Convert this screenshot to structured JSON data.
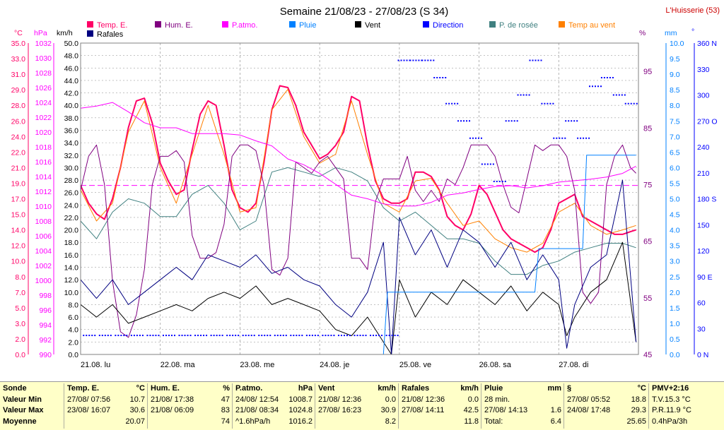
{
  "title": "Semaine 21/08/23 - 27/08/23 (S 34)",
  "station": "L'Huisserie (53)",
  "colors": {
    "temp": "#ff0066",
    "hum": "#800080",
    "patm": "#ff00ff",
    "pluie": "#0080ff",
    "vent": "#000000",
    "direction": "#0000ff",
    "rosee": "#408080",
    "tempvent": "#ff8000",
    "rafales": "#000080",
    "grid": "#a0a0a0"
  },
  "axes": {
    "c_unit": "°C",
    "hpa_unit": "hPa",
    "kmh_unit": "km/h",
    "pct_unit": "%",
    "mm_unit": "mm",
    "deg_unit": "°",
    "c_ticks": [
      "35.0",
      "33.0",
      "31.0",
      "29.0",
      "28.0",
      "26.0",
      "24.0",
      "22.0",
      "21.0",
      "19.0",
      "17.0",
      "15.0",
      "14.0",
      "12.0",
      "10.0",
      "8.0",
      "7.0",
      "5.0",
      "3.0",
      "2.0",
      "0.0"
    ],
    "hpa_ticks": [
      "1032",
      "1030",
      "1028",
      "1026",
      "1024",
      "1022",
      "1020",
      "1018",
      "1016",
      "1014",
      "1012",
      "1010",
      "1008",
      "1006",
      "1004",
      "1002",
      "1000",
      "998",
      "996",
      "994",
      "992",
      "990"
    ],
    "kmh_ticks": [
      "50.0",
      "48.0",
      "46.0",
      "44.0",
      "42.0",
      "40.0",
      "38.0",
      "36.0",
      "34.0",
      "32.0",
      "30.0",
      "28.0",
      "26.0",
      "24.0",
      "22.0",
      "20.0",
      "18.0",
      "16.0",
      "14.0",
      "12.0",
      "10.0",
      "8.0",
      "6.0",
      "4.0",
      "2.0",
      "0.0"
    ],
    "pct_ticks": [
      "95",
      "85",
      "75",
      "65",
      "55",
      "45"
    ],
    "mm_ticks": [
      "10.0",
      "9.5",
      "9.0",
      "8.5",
      "8.0",
      "7.5",
      "7.0",
      "6.5",
      "6.0",
      "5.5",
      "5.0",
      "4.5",
      "4.0",
      "3.5",
      "3.0",
      "2.5",
      "2.0",
      "1.5",
      "1.0",
      "0.5",
      "0.0"
    ],
    "deg_ticks": [
      "360 N",
      "330",
      "300",
      "270 O",
      "240",
      "210",
      "180 S",
      "150",
      "120",
      "90 E",
      "60",
      "30",
      "0 N"
    ],
    "day_labels": [
      "21.08. lu",
      "22.08. ma",
      "23.08. me",
      "24.08. je",
      "25.08. ve",
      "26.08. sa",
      "27.08. di"
    ]
  },
  "legend": [
    "Temp. E.",
    "Hum. E.",
    "P.atmo.",
    "Pluie",
    "Vent",
    "Direction",
    "P. de rosée",
    "Temp au vent",
    "Rafales"
  ],
  "chart_data": {
    "type": "line",
    "x_label": "days",
    "x_ticks": [
      "21.08. lu",
      "22.08. ma",
      "23.08. me",
      "24.08. je",
      "25.08. ve",
      "26.08. sa",
      "27.08. di"
    ],
    "x_range": [
      0,
      7
    ],
    "ylim_temp": [
      0,
      35
    ],
    "ylim_hum": [
      45,
      100
    ],
    "ylim_patm": [
      990,
      1033
    ],
    "ylim_wind": [
      0,
      50
    ],
    "ylim_rain": [
      0,
      10
    ],
    "ylim_dir": [
      0,
      360
    ],
    "series": [
      {
        "name": "Temp. E.",
        "axis": "temp",
        "color": "#ff0066",
        "width": 2,
        "x": [
          0,
          0.1,
          0.2,
          0.3,
          0.4,
          0.5,
          0.6,
          0.7,
          0.8,
          0.9,
          1,
          1.1,
          1.2,
          1.3,
          1.4,
          1.5,
          1.6,
          1.7,
          1.8,
          1.9,
          2,
          2.1,
          2.2,
          2.3,
          2.4,
          2.5,
          2.6,
          2.7,
          2.8,
          2.9,
          3,
          3.1,
          3.2,
          3.3,
          3.4,
          3.5,
          3.6,
          3.7,
          3.8,
          3.9,
          4,
          4.1,
          4.2,
          4.3,
          4.4,
          4.5,
          4.6,
          4.7,
          4.8,
          4.9,
          5,
          5.1,
          5.2,
          5.3,
          5.4,
          5.5,
          5.6,
          5.7,
          5.8,
          5.9,
          6,
          6.1,
          6.2,
          6.3,
          6.4,
          6.5,
          6.6,
          6.7,
          6.8,
          6.9,
          6.97
        ],
        "y": [
          19.0,
          17.0,
          15.8,
          15.2,
          17.5,
          21.0,
          25.5,
          28.5,
          28.8,
          26.0,
          21.5,
          19.5,
          18.0,
          18.5,
          23.0,
          27.0,
          28.5,
          28.0,
          23.5,
          18.5,
          16.5,
          16.0,
          17.0,
          21.5,
          27.5,
          30.2,
          30.0,
          28.0,
          25.0,
          23.5,
          22.0,
          22.5,
          23.5,
          25.0,
          29.0,
          28.5,
          23.5,
          19.5,
          17.5,
          17.0,
          17.0,
          17.5,
          20.5,
          20.5,
          20.0,
          18.5,
          15.5,
          14.5,
          14.0,
          15.8,
          19.0,
          18.0,
          16.0,
          14.0,
          13.0,
          12.5,
          12.0,
          11.5,
          12.0,
          14.0,
          17.0,
          17.5,
          18.0,
          15.5,
          15.0,
          14.5,
          14.0,
          13.5,
          13.5,
          13.8,
          14.0
        ]
      },
      {
        "name": "Temp au vent",
        "axis": "temp",
        "color": "#ff8000",
        "width": 1,
        "x": [
          0,
          0.2,
          0.4,
          0.6,
          0.8,
          1,
          1.2,
          1.4,
          1.6,
          1.8,
          2,
          2.2,
          2.4,
          2.6,
          2.8,
          3,
          3.2,
          3.4,
          3.6,
          3.8,
          4,
          4.2,
          4.4,
          4.6,
          4.8,
          5,
          5.2,
          5.4,
          5.6,
          5.8,
          6,
          6.2,
          6.4,
          6.6,
          6.8,
          6.97
        ],
        "y": [
          18.5,
          15.0,
          17.0,
          25.0,
          28.5,
          21.0,
          17.0,
          22.5,
          28.0,
          22.5,
          16.0,
          16.5,
          27.5,
          29.8,
          24.5,
          21.5,
          22.5,
          28.5,
          22.5,
          17.0,
          16.0,
          19.5,
          19.8,
          17.0,
          14.5,
          15.0,
          13.0,
          12.0,
          11.5,
          12.5,
          16.0,
          17.0,
          14.5,
          13.5,
          14.0,
          14.5
        ]
      },
      {
        "name": "P. de rosée",
        "axis": "temp",
        "color": "#408080",
        "width": 1,
        "x": [
          0,
          0.2,
          0.4,
          0.6,
          0.8,
          1,
          1.2,
          1.4,
          1.6,
          1.8,
          2,
          2.2,
          2.4,
          2.6,
          2.8,
          3,
          3.2,
          3.4,
          3.6,
          3.8,
          4,
          4.2,
          4.4,
          4.6,
          4.8,
          5,
          5.2,
          5.4,
          5.6,
          5.8,
          6,
          6.2,
          6.4,
          6.6,
          6.8,
          6.97
        ],
        "y": [
          15.0,
          13.0,
          16.0,
          17.5,
          17.0,
          15.5,
          15.5,
          18.0,
          19.0,
          17.0,
          14.0,
          15.0,
          20.5,
          21.0,
          20.5,
          20.0,
          21.0,
          20.5,
          19.5,
          16.5,
          15.0,
          16.0,
          14.5,
          13.0,
          13.0,
          12.5,
          10.5,
          9.0,
          9.0,
          10.0,
          10.5,
          11.5,
          12.0,
          12.5,
          12.5,
          12.0
        ]
      },
      {
        "name": "Hum. E.",
        "axis": "hum",
        "color": "#800080",
        "width": 1,
        "x": [
          0,
          0.1,
          0.2,
          0.3,
          0.4,
          0.5,
          0.6,
          0.7,
          0.8,
          0.9,
          1,
          1.1,
          1.2,
          1.3,
          1.4,
          1.5,
          1.6,
          1.7,
          1.8,
          1.9,
          2,
          2.1,
          2.2,
          2.3,
          2.4,
          2.5,
          2.6,
          2.7,
          2.8,
          2.9,
          3,
          3.1,
          3.2,
          3.3,
          3.4,
          3.5,
          3.6,
          3.7,
          3.8,
          3.9,
          4,
          4.1,
          4.2,
          4.3,
          4.4,
          4.5,
          4.6,
          4.7,
          4.8,
          4.9,
          5,
          5.1,
          5.2,
          5.3,
          5.4,
          5.5,
          5.6,
          5.7,
          5.8,
          5.9,
          6,
          6.1,
          6.2,
          6.3,
          6.4,
          6.5,
          6.6,
          6.7,
          6.8,
          6.9,
          6.97
        ],
        "y": [
          74,
          80,
          82,
          75,
          58,
          49,
          48,
          52,
          60,
          75,
          80,
          80,
          81,
          79,
          66,
          62,
          62,
          63,
          68,
          80,
          82,
          82,
          81,
          75,
          60,
          59,
          62,
          79,
          78,
          77,
          79,
          80,
          78,
          76,
          62,
          62,
          60,
          72,
          76,
          76,
          76,
          80,
          74,
          72,
          74,
          72,
          76,
          75,
          78,
          82,
          82,
          82,
          80,
          75,
          71,
          70,
          76,
          82,
          81,
          82,
          82,
          80,
          74,
          56,
          54,
          56,
          75,
          80,
          82,
          78,
          77
        ]
      },
      {
        "name": "P.atmo.",
        "axis": "patm",
        "color": "#ff00ff",
        "width": 1,
        "x": [
          0,
          0.2,
          0.4,
          0.6,
          0.8,
          1,
          1.2,
          1.4,
          1.6,
          1.8,
          2,
          2.2,
          2.4,
          2.6,
          2.8,
          3,
          3.2,
          3.4,
          3.6,
          3.8,
          4,
          4.2,
          4.4,
          4.6,
          4.8,
          5,
          5.2,
          5.4,
          5.6,
          5.8,
          6,
          6.2,
          6.4,
          6.6,
          6.8,
          6.97
        ],
        "y": [
          1024.0,
          1024.3,
          1024.8,
          1023.5,
          1022.0,
          1021.3,
          1021.3,
          1020.5,
          1020.5,
          1020.5,
          1020.3,
          1019.5,
          1018.8,
          1017.0,
          1016.2,
          1015.0,
          1013.5,
          1012.0,
          1011.5,
          1010.8,
          1010.5,
          1010.5,
          1011.0,
          1012.0,
          1012.3,
          1012.8,
          1013.2,
          1013.3,
          1013.0,
          1013.3,
          1013.8,
          1014.0,
          1014.2,
          1014.5,
          1015.0,
          1016.0
        ]
      },
      {
        "name": "Vent",
        "axis": "wind",
        "color": "#000000",
        "width": 1,
        "x": [
          0,
          0.2,
          0.4,
          0.6,
          0.8,
          1,
          1.2,
          1.4,
          1.6,
          1.8,
          2,
          2.2,
          2.4,
          2.6,
          2.8,
          3,
          3.2,
          3.4,
          3.6,
          3.8,
          3.9,
          4,
          4.2,
          4.4,
          4.6,
          4.8,
          5,
          5.2,
          5.4,
          5.6,
          5.8,
          6,
          6.1,
          6.2,
          6.4,
          6.6,
          6.8,
          6.97
        ],
        "y": [
          8,
          6,
          8,
          5,
          6,
          7,
          8,
          7,
          9,
          10,
          9,
          11,
          8,
          9,
          8,
          7,
          4,
          3,
          6,
          2,
          0,
          12,
          6,
          10,
          8,
          12,
          10,
          8,
          11,
          7,
          10,
          8,
          3,
          6,
          10,
          12,
          18,
          2
        ]
      },
      {
        "name": "Rafales",
        "axis": "wind",
        "color": "#000080",
        "width": 1,
        "x": [
          0,
          0.2,
          0.4,
          0.6,
          0.8,
          1,
          1.2,
          1.4,
          1.6,
          1.8,
          2,
          2.2,
          2.4,
          2.6,
          2.8,
          3,
          3.2,
          3.4,
          3.6,
          3.8,
          3.9,
          4,
          4.2,
          4.4,
          4.6,
          4.8,
          5,
          5.2,
          5.4,
          5.6,
          5.8,
          6,
          6.1,
          6.2,
          6.4,
          6.6,
          6.8,
          6.97
        ],
        "y": [
          12,
          9,
          12,
          8,
          10,
          12,
          14,
          12,
          16,
          15,
          14,
          16,
          13,
          14,
          12,
          11,
          8,
          6,
          10,
          18,
          0,
          22,
          16,
          20,
          14,
          20,
          18,
          14,
          18,
          12,
          16,
          12,
          1,
          8,
          14,
          16,
          28,
          2
        ]
      },
      {
        "name": "Pluie",
        "axis": "rain",
        "color": "#0080ff",
        "width": 1,
        "x": [
          0,
          3.8,
          3.85,
          4.0,
          5.2,
          5.7,
          5.75,
          6.3,
          6.35,
          6.85,
          6.9,
          6.97
        ],
        "y": [
          0,
          0,
          2.0,
          2.0,
          2.0,
          2.0,
          3.4,
          3.4,
          6.4,
          6.4,
          6.4,
          6.4
        ]
      },
      {
        "name": "Direction",
        "axis": "dir",
        "color": "#0000ff",
        "type": "dots",
        "x": [
          0.1,
          0.3,
          0.5,
          0.7,
          0.9,
          1.1,
          1.3,
          1.5,
          1.7,
          1.9,
          2.1,
          2.3,
          2.5,
          2.7,
          2.9,
          3.1,
          3.3,
          3.5,
          3.7,
          3.9,
          4.05,
          4.2,
          4.35,
          4.5,
          4.65,
          4.8,
          4.95,
          5.1,
          5.25,
          5.4,
          5.55,
          5.7,
          5.85,
          6.0,
          6.15,
          6.3,
          6.45,
          6.6,
          6.75,
          6.9
        ],
        "y": [
          22,
          22,
          22,
          22,
          22,
          22,
          22,
          22,
          22,
          22,
          22,
          22,
          22,
          22,
          22,
          22,
          22,
          22,
          22,
          22,
          340,
          340,
          340,
          320,
          290,
          270,
          250,
          220,
          200,
          270,
          300,
          340,
          290,
          250,
          270,
          250,
          310,
          320,
          300,
          290
        ]
      }
    ]
  },
  "stats": {
    "cols": [
      {
        "head": "Sonde",
        "head_unit": "",
        "rows": [
          [
            "Valeur Min",
            ""
          ],
          [
            "Valeur Max",
            ""
          ],
          [
            "Moyenne",
            ""
          ]
        ]
      },
      {
        "head": "Temp. E.",
        "head_unit": "°C",
        "rows": [
          [
            "27/08/ 07:56",
            "10.7"
          ],
          [
            "23/08/ 16:07",
            "30.6"
          ],
          [
            "",
            "20.07"
          ]
        ]
      },
      {
        "head": "Hum. E.",
        "head_unit": "%",
        "rows": [
          [
            "21/08/ 17:38",
            "47"
          ],
          [
            "21/08/ 06:09",
            "83"
          ],
          [
            "",
            "74"
          ]
        ]
      },
      {
        "head": "P.atmo.",
        "head_unit": "hPa",
        "rows": [
          [
            "24/08/ 12:54",
            "1008.7"
          ],
          [
            "21/08/ 08:34",
            "1024.8"
          ],
          [
            "^1.6hPa/h",
            "1016.2"
          ]
        ]
      },
      {
        "head": "Vent",
        "head_unit": "km/h",
        "rows": [
          [
            "21/08/ 12:36",
            "0.0"
          ],
          [
            "27/08/ 16:23",
            "30.9"
          ],
          [
            "",
            "8.2"
          ]
        ]
      },
      {
        "head": "Rafales",
        "head_unit": "km/h",
        "rows": [
          [
            "21/08/ 12:36",
            "0.0"
          ],
          [
            "27/08/ 14:11",
            "42.5"
          ],
          [
            "",
            "11.8"
          ]
        ]
      },
      {
        "head": "Pluie",
        "head_unit": "mm",
        "rows": [
          [
            "28 min.",
            ""
          ],
          [
            "27/08/ 14:13",
            "1.6"
          ],
          [
            "Total:",
            "6.4"
          ]
        ]
      },
      {
        "head": "§",
        "head_unit": "°C",
        "rows": [
          [
            "27/08/ 05:52",
            "18.8"
          ],
          [
            "24/08/ 17:48",
            "29.3"
          ],
          [
            "",
            "25.65"
          ]
        ]
      },
      {
        "head": "PMV+2:16",
        "head_unit": "",
        "rows": [
          [
            "T.V.15.3 °C",
            ""
          ],
          [
            "P.R.11.9 °C",
            ""
          ],
          [
            "0.4hPa/3h",
            ""
          ]
        ]
      }
    ]
  }
}
